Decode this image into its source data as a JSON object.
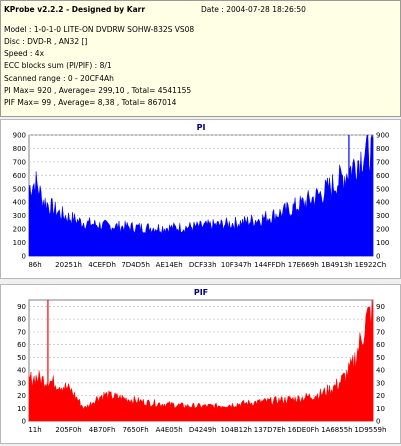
{
  "app": {
    "title": "KProbe v2.2.2 - Designed by Karr",
    "date_label": "Date : 2004-07-28 18:26:50"
  },
  "info": {
    "model": "Model : 1-0-1-0 LITE-ON DVDRW SOHW-832S  VS08",
    "disc": "Disc : DVD-R , AN32 []",
    "speed": "Speed : 4x",
    "ecc": "ECC blocks sum (PI/PIF) : 8/1",
    "range": "Scanned range : 0 - 20CF4Ah",
    "pi_stats": "PI Max= 920 , Average= 299,10 , Total= 4541155",
    "pif_stats": "PIF Max= 99 , Average= 8,38 , Total= 867014"
  },
  "colors": {
    "pi": "#0000ff",
    "pif": "#ff0000",
    "title": "#000080",
    "grid": "#c8c8c8"
  },
  "chart_data": [
    {
      "type": "area",
      "title": "PI",
      "ylim": [
        0,
        900
      ],
      "yticks": [
        0,
        100,
        200,
        300,
        400,
        500,
        600,
        700,
        800,
        900
      ],
      "xticks": [
        "86h",
        "20251h",
        "4CEFDh",
        "7D4D5h",
        "AE14Eh",
        "DCF33h",
        "10F347h",
        "144FFDh",
        "17E669h",
        "1B4913h",
        "1E922Ch"
      ],
      "grid": true,
      "series": [
        {
          "x": [
            0,
            0.02,
            0.04,
            0.06,
            0.08,
            0.1,
            0.12,
            0.15,
            0.18,
            0.22,
            0.26,
            0.3,
            0.34,
            0.38,
            0.42,
            0.46,
            0.5,
            0.54,
            0.58,
            0.62,
            0.66,
            0.7,
            0.74,
            0.78,
            0.82,
            0.86,
            0.89,
            0.92,
            0.94,
            0.96,
            0.98,
            1.0
          ],
          "values": [
            520,
            560,
            430,
            380,
            340,
            310,
            290,
            260,
            245,
            230,
            225,
            220,
            215,
            215,
            215,
            220,
            225,
            235,
            245,
            255,
            275,
            300,
            335,
            380,
            430,
            490,
            550,
            620,
            680,
            740,
            800,
            780
          ]
        }
      ]
    },
    {
      "type": "area",
      "title": "PIF",
      "ylim": [
        0,
        95
      ],
      "yticks": [
        0,
        10,
        20,
        30,
        40,
        50,
        60,
        70,
        80,
        90
      ],
      "xticks": [
        "11h",
        "205F0h",
        "4B70Fh",
        "7650Fh",
        "A4E05h",
        "D4249h",
        "104B12h",
        "137D7Eh",
        "16DE0Fh",
        "1A6855h",
        "1D9559h"
      ],
      "grid": true,
      "series": [
        {
          "x": [
            0,
            0.02,
            0.04,
            0.06,
            0.08,
            0.1,
            0.12,
            0.14,
            0.16,
            0.18,
            0.2,
            0.22,
            0.24,
            0.26,
            0.3,
            0.34,
            0.38,
            0.42,
            0.46,
            0.5,
            0.54,
            0.58,
            0.62,
            0.66,
            0.7,
            0.74,
            0.78,
            0.82,
            0.85,
            0.88,
            0.9,
            0.92,
            0.94,
            0.96,
            0.98,
            1.0
          ],
          "values": [
            33,
            35,
            33,
            32,
            30,
            28,
            25,
            18,
            10,
            14,
            19,
            21,
            20,
            19,
            17,
            15,
            14,
            13,
            12,
            12,
            12,
            13,
            14,
            15,
            16,
            17,
            18,
            20,
            22,
            26,
            30,
            36,
            44,
            60,
            80,
            88
          ]
        }
      ]
    }
  ]
}
